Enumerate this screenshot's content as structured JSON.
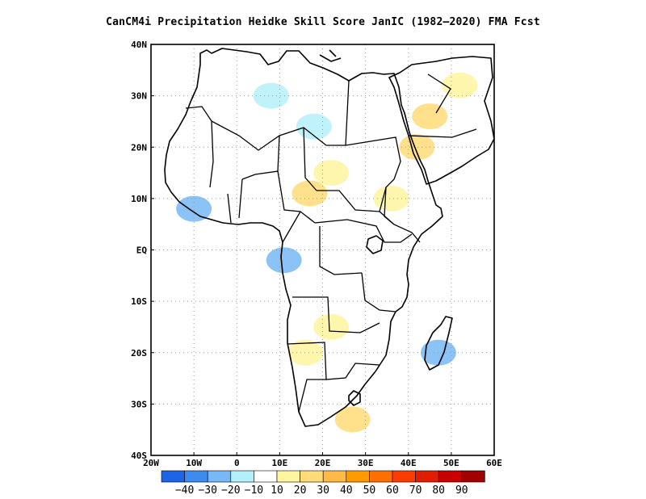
{
  "title": "CanCM4i  Precipitation Heidke Skill Score JanIC (1982–2020) FMA Fcst",
  "map": {
    "lon_range": [
      -20,
      60
    ],
    "lat_range": [
      -40,
      40
    ],
    "grid": "dotted",
    "lat_ticks": [
      {
        "value": 40,
        "label": "40N"
      },
      {
        "value": 30,
        "label": "30N"
      },
      {
        "value": 20,
        "label": "20N"
      },
      {
        "value": 10,
        "label": "10N"
      },
      {
        "value": 0,
        "label": "EQ"
      },
      {
        "value": -10,
        "label": "10S"
      },
      {
        "value": -20,
        "label": "20S"
      },
      {
        "value": -30,
        "label": "30S"
      },
      {
        "value": -40,
        "label": "40S"
      }
    ],
    "lon_ticks": [
      {
        "value": -20,
        "label": "20W"
      },
      {
        "value": -10,
        "label": "10W"
      },
      {
        "value": 0,
        "label": "0"
      },
      {
        "value": 10,
        "label": "10E"
      },
      {
        "value": 20,
        "label": "20E"
      },
      {
        "value": 30,
        "label": "30E"
      },
      {
        "value": 40,
        "label": "40E"
      },
      {
        "value": 50,
        "label": "50E"
      },
      {
        "value": 60,
        "label": "60E"
      }
    ]
  },
  "colorbar": {
    "colors": [
      "#1e64e6",
      "#3c8cf0",
      "#78b9f5",
      "#b4f0fa",
      "#ffffff",
      "#fff5a0",
      "#ffdc78",
      "#ffb946",
      "#ff9b00",
      "#ff6e00",
      "#ff3c00",
      "#e11e00",
      "#c80000",
      "#a00000"
    ],
    "labels": [
      "-40",
      "-30",
      "-20",
      "-10",
      "10",
      "20",
      "30",
      "40",
      "50",
      "60",
      "70",
      "80",
      "90"
    ]
  },
  "chart_data": {
    "type": "heatmap",
    "title": "CanCM4i  Precipitation Heidke Skill Score JanIC (1982–2020) FMA Fcst",
    "x_range": [
      -20,
      60
    ],
    "y_range": [
      -40,
      40
    ],
    "points": [
      {
        "lon": 42,
        "lat": 20,
        "value": 25
      },
      {
        "lon": 45,
        "lat": 26,
        "value": 20
      },
      {
        "lon": 52,
        "lat": 32,
        "value": 18
      },
      {
        "lon": 36,
        "lat": 10,
        "value": 15
      },
      {
        "lon": 17,
        "lat": 11,
        "value": 20
      },
      {
        "lon": 22,
        "lat": 15,
        "value": 12
      },
      {
        "lon": 8,
        "lat": 30,
        "value": -15
      },
      {
        "lon": 18,
        "lat": 24,
        "value": -20
      },
      {
        "lon": -10,
        "lat": 8,
        "value": -25
      },
      {
        "lon": 11,
        "lat": -2,
        "value": -25
      },
      {
        "lon": 27,
        "lat": -33,
        "value": 20
      },
      {
        "lon": 47,
        "lat": -20,
        "value": -30
      },
      {
        "lon": 22,
        "lat": -15,
        "value": 12
      },
      {
        "lon": 16,
        "lat": -20,
        "value": 10
      }
    ]
  }
}
